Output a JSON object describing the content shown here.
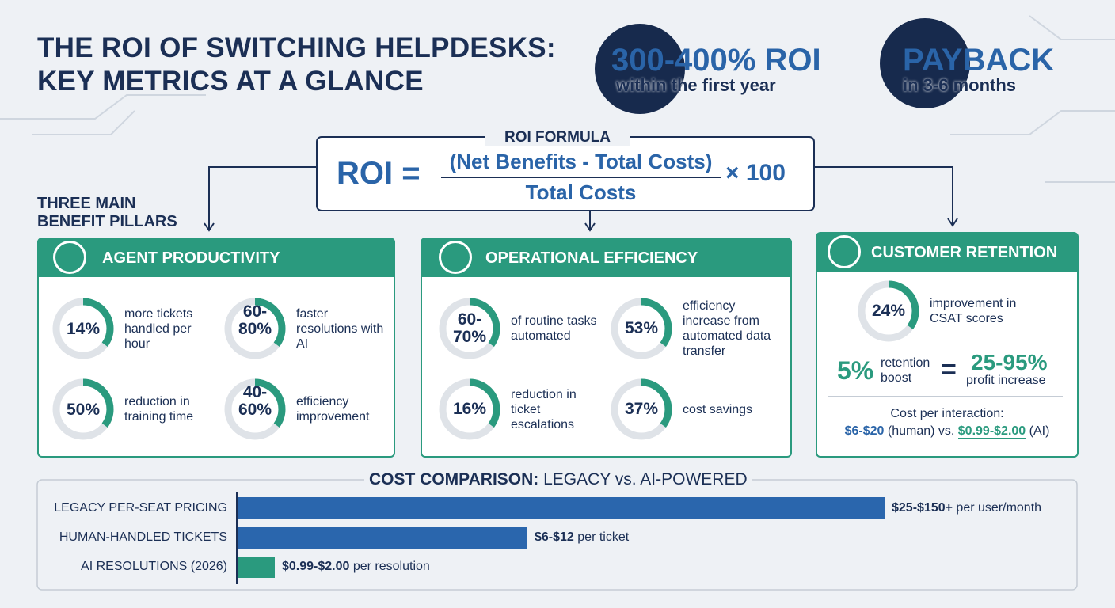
{
  "header": {
    "title_line1": "THE ROI OF SWITCHING HELPDESKS:",
    "title_line2": "KEY METRICS AT A GLANCE"
  },
  "badges": [
    {
      "value": "300-400% ROI",
      "caption": "within the first year"
    },
    {
      "value": "PAYBACK",
      "caption": "in 3-6 months"
    }
  ],
  "formula": {
    "label": "ROI FORMULA",
    "lhs": "ROI =",
    "numerator": "(Net Benefits - Total Costs)",
    "denominator": "Total Costs",
    "multiplier": "× 100"
  },
  "pillars_label": "THREE MAIN BENEFIT PILLARS",
  "pillars": [
    {
      "title": "AGENT PRODUCTIVITY",
      "metrics": [
        {
          "value": "14%",
          "text": "more tickets handled per hour"
        },
        {
          "value": "60-80%",
          "text": "faster resolutions with AI"
        },
        {
          "value": "50%",
          "text": "reduction in training time"
        },
        {
          "value": "40-60%",
          "text": "efficiency improvement"
        }
      ]
    },
    {
      "title": "OPERATIONAL EFFICIENCY",
      "metrics": [
        {
          "value": "60-70%",
          "text": "of routine tasks automated"
        },
        {
          "value": "53%",
          "text": "efficiency increase from automated data transfer"
        },
        {
          "value": "16%",
          "text": "reduction in ticket escalations"
        },
        {
          "value": "37%",
          "text": "cost savings"
        }
      ]
    }
  ],
  "retention": {
    "title": "CUSTOMER RETENTION",
    "csat_value": "24%",
    "csat_text": "improvement in CSAT scores",
    "boost_value": "5%",
    "boost_text": "retention boost",
    "equals": "=",
    "profit_value": "25-95%",
    "profit_text": "profit increase",
    "cost_label": "Cost per interaction:",
    "human_cost": "$6-$20",
    "human_text": "(human) vs.",
    "ai_cost": "$0.99-$2.00",
    "ai_text": "(AI)"
  },
  "cost_comparison": {
    "title_bold": "COST COMPARISON:",
    "title_rest": "LEGACY vs. AI-POWERED",
    "rows": [
      {
        "label": "LEGACY PER-SEAT PRICING",
        "price": "$25-$150+",
        "unit": "per user/month"
      },
      {
        "label": "HUMAN-HANDLED TICKETS",
        "price": "$6-$12",
        "unit": "per ticket"
      },
      {
        "label": "AI RESOLUTIONS (2026)",
        "price": "$0.99-$2.00",
        "unit": "per resolution"
      }
    ]
  }
}
